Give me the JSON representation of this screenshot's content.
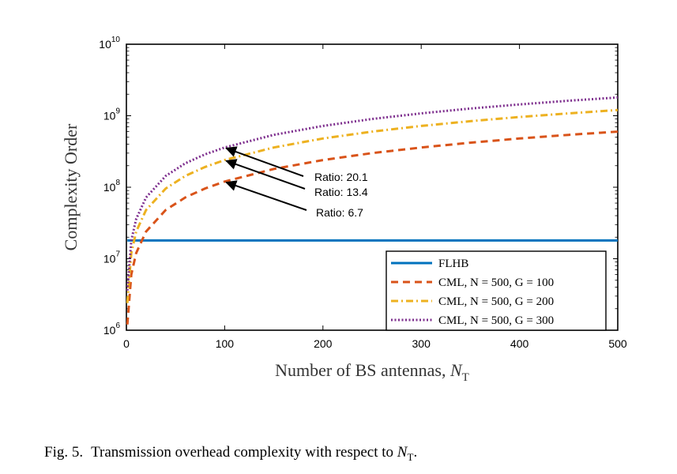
{
  "chart_data": {
    "type": "line",
    "xlabel": "Number of BS antennas, N_T",
    "ylabel": "Complexity Order",
    "xlim": [
      0,
      500
    ],
    "ylim": [
      1000000,
      10000000000
    ],
    "yscale": "log",
    "x_ticks": [
      "0",
      "100",
      "200",
      "300",
      "400",
      "500"
    ],
    "y_ticks": [
      {
        "base": "10",
        "exp": "6"
      },
      {
        "base": "10",
        "exp": "7"
      },
      {
        "base": "10",
        "exp": "8"
      },
      {
        "base": "10",
        "exp": "9"
      },
      {
        "base": "10",
        "exp": "10"
      }
    ],
    "legend_position": "bottom-right",
    "series": [
      {
        "name": "FLHB",
        "color": "#0072BD",
        "style": "solid",
        "x": [
          1,
          100,
          200,
          300,
          400,
          500
        ],
        "y": [
          18000000,
          18000000,
          18000000,
          18000000,
          18000000,
          18000000
        ]
      },
      {
        "name": "CML, N = 500, G = 100",
        "color": "#D95319",
        "style": "dashed",
        "x": [
          1,
          5,
          10,
          20,
          40,
          60,
          80,
          100,
          150,
          200,
          250,
          300,
          350,
          400,
          450,
          500
        ],
        "y": [
          1200000,
          6000000,
          12000000,
          24000000,
          48000000,
          72000000,
          96000000,
          120000000,
          180000000,
          240000000,
          300000000,
          360000000,
          420000000,
          480000000,
          540000000,
          600000000
        ]
      },
      {
        "name": "CML, N = 500, G = 200",
        "color": "#EDB120",
        "style": "dashdot",
        "x": [
          1,
          5,
          10,
          20,
          40,
          60,
          80,
          100,
          150,
          200,
          250,
          300,
          350,
          400,
          450,
          500
        ],
        "y": [
          2400000,
          12000000,
          24000000,
          48000000,
          96000000,
          144000000,
          192000000,
          240000000,
          360000000,
          480000000,
          600000000,
          720000000,
          840000000,
          960000000,
          1080000000,
          1200000000
        ]
      },
      {
        "name": "CML, N = 500, G = 300",
        "color": "#7E2F8E",
        "style": "dotted",
        "x": [
          1,
          5,
          10,
          20,
          40,
          60,
          80,
          100,
          150,
          200,
          250,
          300,
          350,
          400,
          450,
          500
        ],
        "y": [
          3600000,
          18000000,
          36000000,
          72000000,
          144000000,
          216000000,
          288000000,
          360000000,
          540000000,
          720000000,
          900000000,
          1080000000,
          1260000000,
          1440000000,
          1620000000,
          1800000000
        ]
      }
    ],
    "annotations": [
      {
        "text": "Ratio: 20.1",
        "x": 100,
        "y": 360000000
      },
      {
        "text": "Ratio: 13.4",
        "x": 100,
        "y": 240000000
      },
      {
        "text": "Ratio: 6.7",
        "x": 100,
        "y": 120000000
      }
    ]
  },
  "caption": {
    "number": "Fig. 5.",
    "text": "Transmission overhead complexity with respect to N_T."
  }
}
